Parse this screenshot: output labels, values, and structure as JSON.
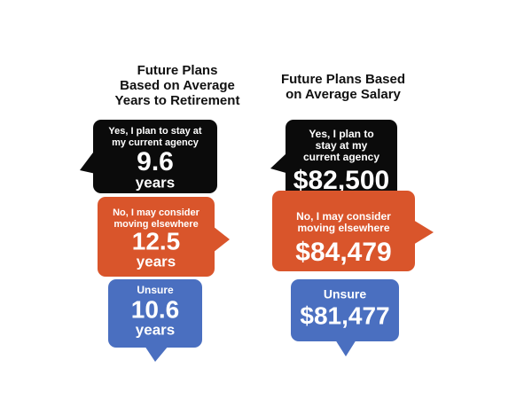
{
  "panels": [
    {
      "title_lines": [
        "Future Plans",
        "Based on Average",
        "Years to Retirement"
      ],
      "bubbles": [
        {
          "label_lines": [
            "Yes, I plan to stay at",
            "my current agency"
          ],
          "value": "9.6",
          "unit": "years"
        },
        {
          "label_lines": [
            "No, I may consider",
            "moving elsewhere"
          ],
          "value": "12.5",
          "unit": "years"
        },
        {
          "label_lines": [
            "Unsure"
          ],
          "value": "10.6",
          "unit": "years"
        }
      ]
    },
    {
      "title_lines": [
        "Future Plans Based",
        "on Average Salary"
      ],
      "bubbles": [
        {
          "label_lines": [
            "Yes, I plan to",
            "stay at my",
            "current agency"
          ],
          "value": "$82,500"
        },
        {
          "label_lines": [
            "No, I may consider",
            "moving elsewhere"
          ],
          "value": "$84,479"
        },
        {
          "label_lines": [
            "Unsure"
          ],
          "value": "$81,477"
        }
      ]
    }
  ]
}
